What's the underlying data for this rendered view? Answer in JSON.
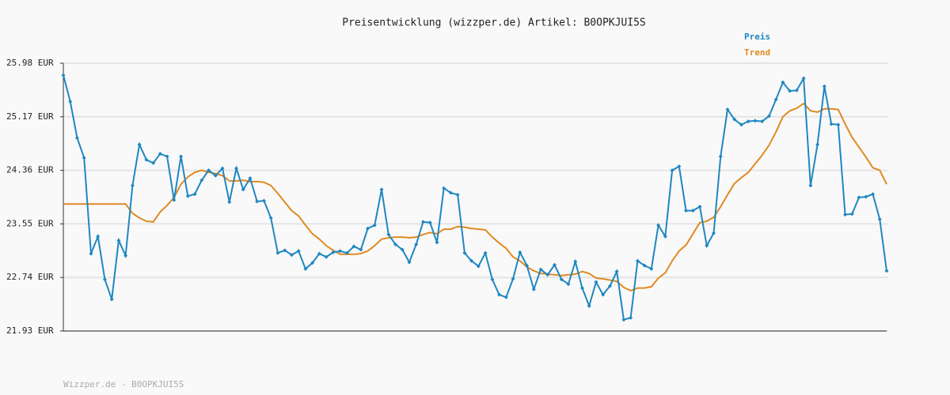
{
  "chart_data": {
    "type": "line",
    "title": "Preisentwicklung (wizzper.de) Artikel: B0OPKJUI5S",
    "footer": "Wizzper.de - B0OPKJUI5S",
    "ylim": [
      21.93,
      25.98
    ],
    "yticks": [
      {
        "value": 21.93,
        "label": "21.93 EUR"
      },
      {
        "value": 22.74,
        "label": "22.74 EUR"
      },
      {
        "value": 23.55,
        "label": "23.55 EUR"
      },
      {
        "value": 24.36,
        "label": "24.36 EUR"
      },
      {
        "value": 25.17,
        "label": "25.17 EUR"
      },
      {
        "value": 25.98,
        "label": "25.98 EUR"
      }
    ],
    "grid": true,
    "legend": "top-right",
    "series": [
      {
        "name": "Preis",
        "color": "#1f87c2",
        "markers": true,
        "values": [
          25.8,
          25.4,
          24.85,
          24.55,
          23.1,
          23.36,
          22.71,
          22.41,
          23.3,
          23.07,
          24.13,
          24.75,
          24.52,
          24.47,
          24.61,
          24.57,
          23.91,
          24.57,
          23.97,
          24.0,
          24.21,
          24.36,
          24.28,
          24.39,
          23.88,
          24.39,
          24.07,
          24.24,
          23.89,
          23.9,
          23.64,
          23.11,
          23.15,
          23.08,
          23.14,
          22.87,
          22.96,
          23.1,
          23.05,
          23.12,
          23.14,
          23.11,
          23.21,
          23.16,
          23.48,
          23.53,
          24.07,
          23.39,
          23.24,
          23.16,
          22.97,
          23.24,
          23.58,
          23.57,
          23.27,
          24.09,
          24.02,
          23.99,
          23.11,
          22.99,
          22.91,
          23.11,
          22.71,
          22.48,
          22.44,
          22.72,
          23.12,
          22.92,
          22.56,
          22.86,
          22.78,
          22.93,
          22.71,
          22.64,
          22.98,
          22.58,
          22.31,
          22.67,
          22.48,
          22.61,
          22.83,
          22.1,
          22.13,
          22.99,
          22.92,
          22.87,
          23.53,
          23.36,
          24.36,
          24.42,
          23.75,
          23.75,
          23.81,
          23.22,
          23.41,
          24.57,
          25.28,
          25.13,
          25.05,
          25.1,
          25.11,
          25.1,
          25.18,
          25.43,
          25.69,
          25.56,
          25.57,
          25.75,
          24.13,
          24.75,
          25.63,
          25.06,
          25.05,
          23.69,
          23.7,
          23.95,
          23.96,
          24.0,
          23.62,
          22.84
        ]
      },
      {
        "name": "Trend",
        "color": "#e08a22",
        "markers": false,
        "values": [
          23.85,
          23.85,
          23.85,
          23.85,
          23.85,
          23.85,
          23.85,
          23.85,
          23.85,
          23.85,
          23.71,
          23.64,
          23.59,
          23.58,
          23.73,
          23.83,
          23.95,
          24.15,
          24.26,
          24.33,
          24.36,
          24.33,
          24.31,
          24.28,
          24.2,
          24.2,
          24.21,
          24.19,
          24.19,
          24.18,
          24.13,
          24.01,
          23.88,
          23.75,
          23.67,
          23.53,
          23.4,
          23.32,
          23.22,
          23.15,
          23.09,
          23.09,
          23.09,
          23.1,
          23.14,
          23.22,
          23.32,
          23.34,
          23.35,
          23.35,
          23.34,
          23.35,
          23.39,
          23.42,
          23.4,
          23.47,
          23.47,
          23.51,
          23.5,
          23.48,
          23.47,
          23.46,
          23.35,
          23.26,
          23.18,
          23.05,
          22.99,
          22.9,
          22.84,
          22.8,
          22.79,
          22.78,
          22.77,
          22.78,
          22.79,
          22.83,
          22.8,
          22.73,
          22.72,
          22.7,
          22.68,
          22.59,
          22.54,
          22.58,
          22.58,
          22.6,
          22.73,
          22.81,
          22.99,
          23.14,
          23.23,
          23.4,
          23.57,
          23.59,
          23.65,
          23.81,
          23.99,
          24.16,
          24.25,
          24.33,
          24.46,
          24.59,
          24.74,
          24.94,
          25.17,
          25.26,
          25.3,
          25.37,
          25.26,
          25.24,
          25.29,
          25.29,
          25.28,
          25.06,
          24.86,
          24.71,
          24.56,
          24.4,
          24.36,
          24.15
        ]
      }
    ]
  }
}
